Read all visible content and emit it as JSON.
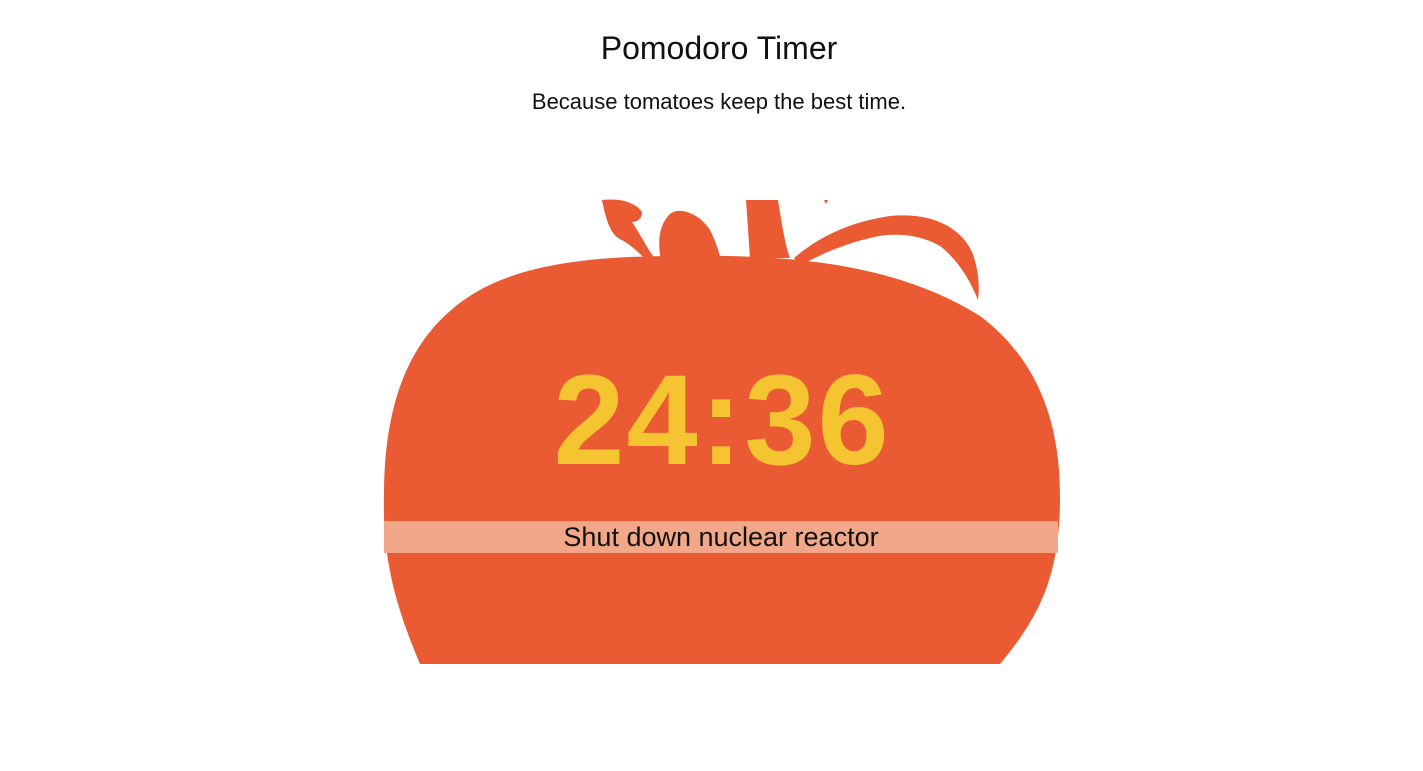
{
  "header": {
    "title": "Pomodoro Timer",
    "subtitle": "Because tomatoes keep the best time."
  },
  "timer": {
    "display": "24:36"
  },
  "task": {
    "value": "Shut down nuclear reactor"
  },
  "colors": {
    "background": "#ffffff",
    "tomato": "#eb5b33",
    "timer_text": "#f4c431",
    "task_band": "#f2a888",
    "text": "#111111"
  },
  "icons": {
    "tomato": "tomato-icon",
    "stem": "stem-icon"
  }
}
